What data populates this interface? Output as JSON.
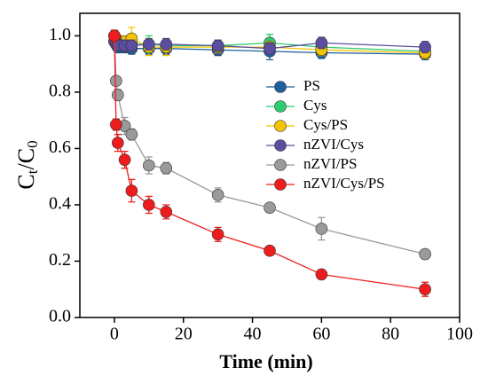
{
  "chart_data": {
    "type": "line",
    "xlabel": "Time (min)",
    "ylabel": [
      "C",
      "t",
      "/C",
      "0"
    ],
    "x": [
      0,
      0.5,
      1,
      3,
      5,
      10,
      15,
      30,
      45,
      60,
      90
    ],
    "xlim": [
      -10,
      100
    ],
    "xticks": [
      0,
      20,
      40,
      60,
      80,
      100
    ],
    "ylim": [
      0,
      1.08
    ],
    "yticks": [
      {
        "value": 0,
        "label": "0.0"
      },
      0.2,
      0.4,
      0.6,
      0.8,
      {
        "value": 1,
        "label": "1.0"
      }
    ],
    "legend": "center right",
    "series": [
      {
        "name": "PS",
        "color": "#1f5f9e",
        "values": [
          0.98,
          0.97,
          0.96,
          0.96,
          0.955,
          0.955,
          0.955,
          0.95,
          0.945,
          0.94,
          0.935
        ],
        "errors": [
          0.02,
          0.02,
          0.02,
          0.02,
          0.02,
          0.02,
          0.02,
          0.02,
          0.03,
          0.02,
          0.02
        ]
      },
      {
        "name": "Cys",
        "color": "#2ecc71",
        "values": [
          1.0,
          0.98,
          0.97,
          0.97,
          0.97,
          0.97,
          0.965,
          0.965,
          0.975,
          0.96,
          0.945
        ],
        "errors": [
          0.02,
          0.02,
          0.02,
          0.02,
          0.02,
          0.03,
          0.02,
          0.02,
          0.03,
          0.02,
          0.02
        ]
      },
      {
        "name": "Cys/PS",
        "color": "#f5c400",
        "values": [
          1.0,
          0.99,
          0.98,
          0.98,
          0.99,
          0.96,
          0.96,
          0.96,
          0.96,
          0.95,
          0.94
        ],
        "errors": [
          0.02,
          0.02,
          0.02,
          0.02,
          0.04,
          0.03,
          0.03,
          0.02,
          0.02,
          0.02,
          0.02
        ]
      },
      {
        "name": "nZVI/Cys",
        "color": "#5b4ea0",
        "values": [
          0.98,
          0.98,
          0.97,
          0.965,
          0.965,
          0.97,
          0.97,
          0.965,
          0.955,
          0.975,
          0.96
        ],
        "errors": [
          0.02,
          0.02,
          0.02,
          0.02,
          0.02,
          0.02,
          0.02,
          0.02,
          0.02,
          0.02,
          0.02
        ]
      },
      {
        "name": "nZVI/PS",
        "color": "#9a9a9a",
        "values": [
          1.0,
          0.84,
          0.79,
          0.68,
          0.65,
          0.54,
          0.53,
          0.435,
          0.39,
          0.315,
          0.225
        ],
        "errors": [
          0.01,
          0.01,
          0.02,
          0.03,
          0.02,
          0.03,
          0.02,
          0.025,
          0.01,
          0.04,
          0.01
        ]
      },
      {
        "name": "nZVI/Cys/PS",
        "color": "#ee1c1c",
        "values": [
          1.0,
          0.685,
          0.62,
          0.56,
          0.45,
          0.4,
          0.375,
          0.295,
          0.237,
          0.153,
          0.1
        ],
        "errors": [
          0.02,
          0.02,
          0.03,
          0.03,
          0.04,
          0.03,
          0.025,
          0.025,
          0.01,
          0.01,
          0.025
        ]
      }
    ]
  }
}
